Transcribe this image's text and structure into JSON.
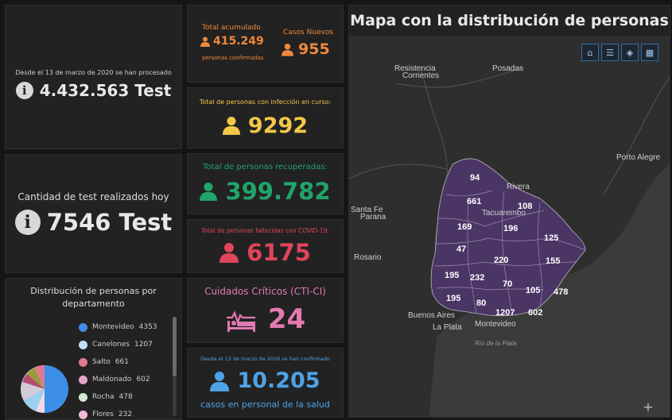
{
  "tests_total": {
    "caption": "Desde el 13 de marzo de 2020 se han procesado",
    "value": "4.432.563 Test"
  },
  "tests_today": {
    "caption": "Cantidad de test realizados hoy",
    "value": "7546 Test"
  },
  "accumulated": {
    "label": "Total acumulado",
    "value": "415.249",
    "sub": "personas confirmadas",
    "new_label": "Casos Nuevos",
    "new_value": "955"
  },
  "active": {
    "label": "Total de personas con infección en curso:",
    "value": "9292"
  },
  "recovered": {
    "label": "Total de personas recuperadas:",
    "value": "399.782"
  },
  "deceased": {
    "label": "Total de personas fallecidas con COVID-19:",
    "value": "6175"
  },
  "icu": {
    "label": "Cuidados Críticos (CTI-CI)",
    "value": "24"
  },
  "health_staff": {
    "caption": "Desde el 13 de marzo de 2020 se han confirmado",
    "value": "10.205",
    "sub": "casos en personal de la salud"
  },
  "distribution": {
    "title": "Distribución de personas por departamento",
    "legend": [
      {
        "label": "Montevideo",
        "value": "4353",
        "color": "#3d8ee8"
      },
      {
        "label": "Canelones",
        "value": "1207",
        "color": "#bde0f7"
      },
      {
        "label": "Salto",
        "value": "661",
        "color": "#e07a93"
      },
      {
        "label": "Maldonado",
        "value": "602",
        "color": "#e4a6c2"
      },
      {
        "label": "Rocha",
        "value": "478",
        "color": "#cfe8d7"
      },
      {
        "label": "Flores",
        "value": "232",
        "color": "#f1b8d8"
      }
    ]
  },
  "map": {
    "title": "Mapa con la distribución de personas",
    "places": [
      "Resistencia",
      "Corrientes",
      "Posadas",
      "Porto Alegre",
      "Santa Fe",
      "Parana",
      "Rosario",
      "Buenos Aires",
      "La Plata",
      "Montevideo",
      "Rivera",
      "Tacuarembo",
      "Río de la Plata"
    ],
    "department_values": [
      "94",
      "661",
      "108",
      "169",
      "196",
      "125",
      "47",
      "220",
      "155",
      "195",
      "232",
      "70",
      "105",
      "478",
      "195",
      "80",
      "1207",
      "602"
    ],
    "tools": [
      "home-icon",
      "list-icon",
      "layers-icon",
      "basemap-icon"
    ]
  },
  "colors": {
    "orange": "#f0883a",
    "yellow": "#f3c84a",
    "green": "#1fa46a",
    "red": "#e0455a",
    "pink": "#e27ab1",
    "blue": "#4ea3e8",
    "uruguay": "#4a3565"
  }
}
